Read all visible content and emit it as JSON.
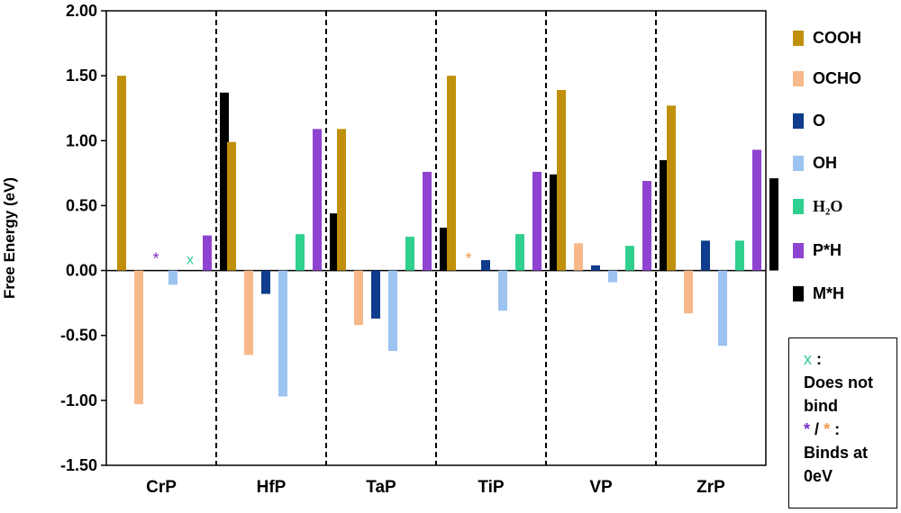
{
  "chart_data": {
    "type": "bar",
    "ylabel": "Free Energy (eV)",
    "ylim": [
      -1.5,
      2.0
    ],
    "yticks": [
      "2.00",
      "1.50",
      "1.00",
      "0.50",
      "0.00",
      "-0.50",
      "-1.00",
      "-1.50"
    ],
    "categories": [
      "CrP",
      "HfP",
      "TaP",
      "TiP",
      "VP",
      "ZrP"
    ],
    "series": [
      {
        "name": "COOH",
        "color": "#c0900c",
        "values": [
          1.5,
          0.99,
          1.09,
          1.5,
          1.39,
          1.27
        ]
      },
      {
        "name": "OCHO",
        "color": "#f7b98a",
        "values": [
          -1.03,
          -0.65,
          -0.42,
          null,
          0.21,
          -0.33
        ]
      },
      {
        "name": "O",
        "color": "#0f3c8c",
        "values": [
          null,
          -0.18,
          -0.37,
          0.08,
          0.04,
          0.23
        ]
      },
      {
        "name": "OH",
        "color": "#9dc3f0",
        "values": [
          -0.11,
          -0.97,
          -0.62,
          -0.31,
          -0.09,
          -0.58
        ]
      },
      {
        "name": "H2O",
        "display": "H₂O",
        "color": "#2fcf8e",
        "values": [
          null,
          0.28,
          0.26,
          0.28,
          0.19,
          0.23
        ]
      },
      {
        "name": "P*H",
        "color": "#8e44d0",
        "values": [
          0.27,
          1.09,
          0.76,
          0.76,
          0.69,
          0.93
        ]
      },
      {
        "name": "M*H",
        "color": "#000000",
        "values": [
          1.37,
          0.44,
          0.33,
          0.74,
          0.85,
          0.71
        ]
      }
    ],
    "markers": [
      {
        "category": "CrP",
        "series": "O",
        "symbol": "*",
        "color": "#7a2ec7",
        "meaning": "binds at 0eV"
      },
      {
        "category": "CrP",
        "series": "H2O",
        "symbol": "x",
        "color": "#2ecc8f",
        "meaning": "does not bind"
      },
      {
        "category": "TiP",
        "series": "OCHO",
        "symbol": "*",
        "color": "#f39a4a",
        "meaning": "binds at 0eV"
      }
    ],
    "grid": false,
    "legend_position": "right",
    "separators": "dashed vertical lines between categories"
  },
  "notes": {
    "x_symbol": "x",
    "x_meaning_1": "Does not",
    "x_meaning_2": "bind",
    "star1": "*",
    "slash": "/",
    "star2": "*",
    "star_meaning_1": "Binds at",
    "star_meaning_2": "0eV",
    "colon": ":"
  }
}
